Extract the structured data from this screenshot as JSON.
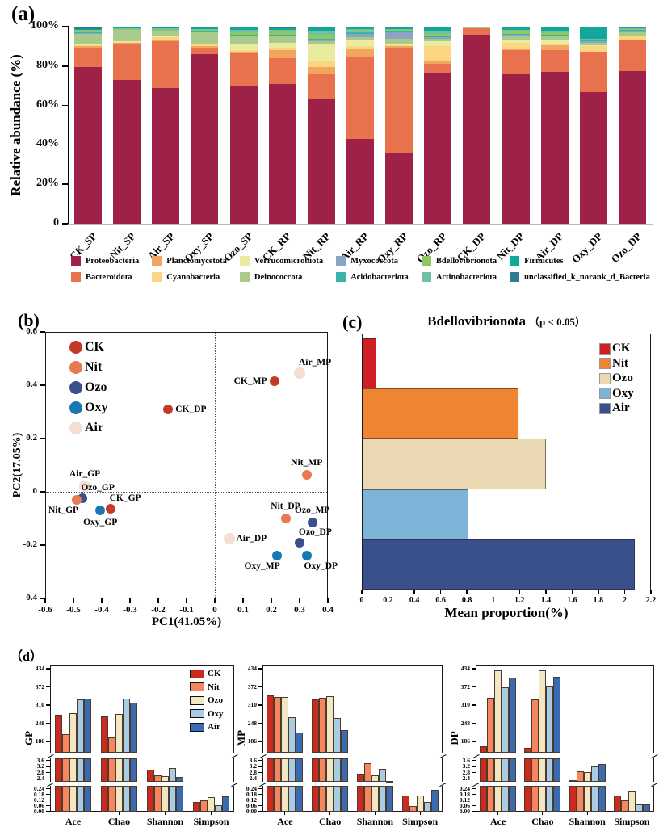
{
  "figure": {
    "panels": {
      "a": "(a)",
      "b": "(b)",
      "c": "(c)",
      "d": "（d）"
    }
  },
  "chart_data": [
    {
      "id": "relative-abundance",
      "type": "bar",
      "subtype": "stacked_percent",
      "ylabel": "Relative abundance (%)",
      "ylim": [
        0,
        100
      ],
      "ytick_labels": [
        "0",
        "20%",
        "40%",
        "60%",
        "80%",
        "100%"
      ],
      "categories": [
        "CK_SP",
        "Nit_SP",
        "Air_SP",
        "Oxy_SP",
        "Ozo_SP",
        "CK_RP",
        "Nit_RP",
        "Air_RP",
        "Oxy_RP",
        "Ozo_RP",
        "CK_DP",
        "Nit_DP",
        "Air_DP",
        "Oxy_DP",
        "Ozo_DP"
      ],
      "series": [
        {
          "name": "Proteobacteria",
          "color": "#9e2247",
          "values": [
            79.5,
            73,
            69,
            86,
            70,
            71,
            63,
            43,
            36,
            76.5,
            96,
            76,
            77,
            67,
            77.5
          ]
        },
        {
          "name": "Bacteroidota",
          "color": "#e8724d",
          "values": [
            10,
            18.5,
            23.5,
            3.5,
            16.5,
            13,
            13,
            42,
            53.5,
            4.5,
            3,
            12,
            11,
            20,
            15.5
          ]
        },
        {
          "name": "Planctomycetota",
          "color": "#f2a55e",
          "values": [
            0.5,
            0.3,
            0.5,
            0.5,
            0.5,
            4,
            3.5,
            3.5,
            0.5,
            1.5,
            0.1,
            0.5,
            2.5,
            0.5,
            0.5
          ]
        },
        {
          "name": "Cyanobacteria",
          "color": "#fbd581",
          "values": [
            0.5,
            0.4,
            1.5,
            1,
            1,
            1.5,
            3,
            1.5,
            0.5,
            7.5,
            0.1,
            3.5,
            1,
            2.5,
            1.5
          ]
        },
        {
          "name": "Verrucomicrobiota",
          "color": "#e9eb9e",
          "values": [
            1,
            0.5,
            0.5,
            0.5,
            3.5,
            2.5,
            8.5,
            3,
            1,
            2.5,
            0.1,
            1.5,
            1.5,
            0.5,
            0.5
          ]
        },
        {
          "name": "Deinococcota",
          "color": "#a8cb8c",
          "values": [
            5,
            5.5,
            2.5,
            5.5,
            3.5,
            3,
            1.5,
            1.5,
            2.5,
            1.5,
            0.3,
            2,
            2,
            1.5,
            1.5
          ]
        },
        {
          "name": "Myxococcota",
          "color": "#8ba4c4",
          "values": [
            0.2,
            0.1,
            0.2,
            0.2,
            0.3,
            0.5,
            0.5,
            2,
            3,
            0.5,
            0.05,
            0.5,
            0.5,
            0.5,
            1
          ]
        },
        {
          "name": "Acidobacteriota",
          "color": "#39b5a7",
          "values": [
            0.3,
            0.2,
            0.3,
            0.3,
            0.7,
            0.5,
            1,
            0.5,
            0.5,
            1,
            0.05,
            0.5,
            0.5,
            0.5,
            0.3
          ]
        },
        {
          "name": "Bdellovibrionota",
          "color": "#8ec861",
          "values": [
            0.8,
            0.5,
            0.5,
            1,
            1,
            1.5,
            2,
            1,
            0.8,
            1,
            0.1,
            1,
            1,
            0.5,
            0.5
          ]
        },
        {
          "name": "Actinobacteriota",
          "color": "#6fc19f",
          "values": [
            0.7,
            0.4,
            0.5,
            0.5,
            1.5,
            1,
            1.5,
            0.8,
            0.5,
            1.5,
            0.1,
            1,
            1,
            0.5,
            0.4
          ]
        },
        {
          "name": "Firmicutes",
          "color": "#12a79b",
          "values": [
            0.5,
            0.3,
            0.5,
            0.5,
            1,
            0.8,
            2,
            0.9,
            0.9,
            1.5,
            0.05,
            1,
            1.5,
            5.5,
            0.5
          ]
        },
        {
          "name": "unclassified_k_norank_d_Bacteria",
          "color": "#2e7e92",
          "values": [
            1,
            0.3,
            0.5,
            0.5,
            0.5,
            0.7,
            0.5,
            0.3,
            0.3,
            0.5,
            0.05,
            0.5,
            0.5,
            0.5,
            0.3
          ]
        }
      ]
    },
    {
      "id": "pca",
      "type": "scatter",
      "xlabel": "PC1(41.05%)",
      "ylabel": "PC2(17.05%)",
      "xlim": [
        -0.6,
        0.4
      ],
      "ylim": [
        -0.4,
        0.6
      ],
      "xticks": [
        "-0.6",
        "-0.5",
        "-0.4",
        "-0.3",
        "-0.2",
        "-0.1",
        "0",
        "0.1",
        "0.2",
        "0.3",
        "0.4"
      ],
      "yticks": [
        "0.6",
        "0.4",
        "0.2",
        "0",
        "-0.2",
        "-0.4"
      ],
      "grid": "zero-lines-dashed",
      "legend_position": "top-left-inside",
      "groups": [
        {
          "name": "CK",
          "color": "#c43a26"
        },
        {
          "name": "Nit",
          "color": "#e87a52"
        },
        {
          "name": "Ozo",
          "color": "#3c4f8d"
        },
        {
          "name": "Oxy",
          "color": "#1778b5"
        },
        {
          "name": "Air",
          "color": "#f6ddd3"
        }
      ],
      "points": [
        {
          "label": "CK_MP",
          "group": "CK",
          "x": 0.21,
          "y": 0.415,
          "lp": "left"
        },
        {
          "label": "Air_MP",
          "group": "Air",
          "x": 0.3,
          "y": 0.445,
          "lp": "topright"
        },
        {
          "label": "CK_DP",
          "group": "CK",
          "x": -0.165,
          "y": 0.31,
          "lp": "right"
        },
        {
          "label": "Nit_MP",
          "group": "Nit",
          "x": 0.325,
          "y": 0.065,
          "lp": "top"
        },
        {
          "label": "Air_GP",
          "group": "Air",
          "x": -0.46,
          "y": 0.02,
          "lp": "top"
        },
        {
          "label": "Ozo_GP",
          "group": "Ozo",
          "x": -0.47,
          "y": -0.025,
          "lp": "topright"
        },
        {
          "label": "Nit_GP",
          "group": "Nit",
          "x": -0.49,
          "y": -0.03,
          "lp": "bottomleft"
        },
        {
          "label": "CK_GP",
          "group": "CK",
          "x": -0.37,
          "y": -0.065,
          "lp": "topright"
        },
        {
          "label": "Oxy_GP",
          "group": "Oxy",
          "x": -0.405,
          "y": -0.07,
          "lp": "bottom"
        },
        {
          "label": "Nit_DP",
          "group": "Nit",
          "x": 0.25,
          "y": -0.1,
          "lp": "top"
        },
        {
          "label": "Ozo_MP",
          "group": "Ozo",
          "x": 0.345,
          "y": -0.115,
          "lp": "top"
        },
        {
          "label": "Air_DP",
          "group": "Air",
          "x": 0.05,
          "y": -0.175,
          "lp": "right"
        },
        {
          "label": "Ozo_DP",
          "group": "Ozo",
          "x": 0.3,
          "y": -0.19,
          "lp": "topright"
        },
        {
          "label": "Oxy_MP",
          "group": "Oxy",
          "x": 0.22,
          "y": -0.24,
          "lp": "bottomleft"
        },
        {
          "label": "Oxy_DP",
          "group": "Oxy",
          "x": 0.325,
          "y": -0.24,
          "lp": "bottomright"
        }
      ]
    },
    {
      "id": "bdellovibrionota-proportion",
      "type": "bar",
      "orientation": "horizontal",
      "title": "Bdellovibrionota",
      "title_note": "（p < 0.05）",
      "xlabel": "Mean proportion(%)",
      "xlim": [
        0,
        2.2
      ],
      "xticks": [
        "0",
        "0.2",
        "0.4",
        "0.6",
        "0.8",
        "1",
        "1.2",
        "1.4",
        "1.6",
        "1.8",
        "2",
        "2.2"
      ],
      "categories": [
        "CK",
        "Nit",
        "Ozo",
        "Oxy",
        "Air"
      ],
      "colors": [
        "#d01f24",
        "#f08531",
        "#ead8b2",
        "#7cb3d7",
        "#39508d"
      ],
      "values": [
        0.1,
        1.18,
        1.39,
        0.8,
        2.07
      ],
      "legend_position": "top-right-inside"
    },
    {
      "id": "alpha-diversity",
      "type": "bar",
      "subtype": "grouped_broken_axis",
      "categories": [
        "Ace",
        "Chao",
        "Shannon",
        "Simpson"
      ],
      "series_names": [
        "CK",
        "Nit",
        "Ozo",
        "Oxy",
        "Air"
      ],
      "colors": [
        "#cc2a1e",
        "#f6865e",
        "#f1e7c2",
        "#a7cce4",
        "#3a6bb0"
      ],
      "axis_segments": [
        {
          "range": [
            148,
            445
          ],
          "ticks": [
            "434",
            "372",
            "310",
            "248",
            "186"
          ]
        },
        {
          "range": [
            2.2,
            3.75
          ],
          "ticks": [
            "3.6",
            "3.2",
            "2.8",
            "2.4"
          ]
        },
        {
          "range": [
            0,
            0.27
          ],
          "ticks": [
            "0.24",
            "0.18",
            "0.12",
            "0.06",
            "0.00"
          ]
        }
      ],
      "subplots": [
        {
          "label": "GP",
          "values": {
            "Ace": [
              277,
              212,
              283,
              330,
              331
            ],
            "Chao": [
              271,
              200,
              281,
              333,
              318
            ],
            "Shannon": [
              3.0,
              2.65,
              2.55,
              3.1,
              2.5
            ],
            "Simpson": [
              0.1,
              0.12,
              0.15,
              0.07,
              0.16
            ]
          }
        },
        {
          "label": "MP",
          "values": {
            "Ace": [
              342,
              338,
              337,
              270,
              218
            ],
            "Chao": [
              330,
              335,
              340,
              267,
              224
            ],
            "Shannon": [
              2.75,
              3.45,
              2.65,
              3.05,
              2.25
            ],
            "Simpson": [
              0.17,
              0.06,
              0.17,
              0.1,
              0.23
            ]
          }
        },
        {
          "label": "DP",
          "values": {
            "Ace": [
              170,
              335,
              428,
              371,
              405
            ],
            "Chao": [
              165,
              330,
              428,
              374,
              406
            ],
            "Shannon": [
              2.3,
              2.9,
              2.85,
              3.2,
              3.4
            ],
            "Simpson": [
              0.17,
              0.12,
              0.21,
              0.08,
              0.08
            ]
          }
        }
      ]
    }
  ]
}
